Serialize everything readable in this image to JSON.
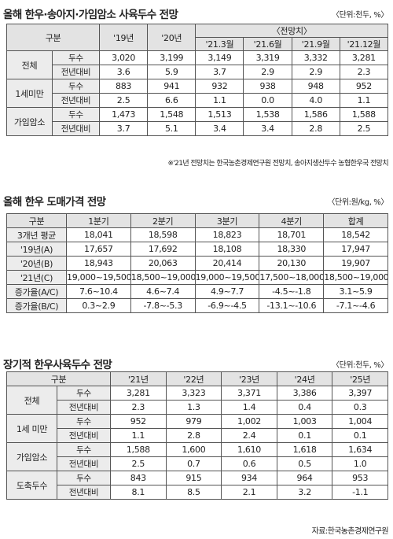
{
  "t1": {
    "title": "올해 한우·송아지·가임암소 사육두수 전망",
    "unit": "〈단위:천두, %〉",
    "head": {
      "group": "구분",
      "y19": "'19년",
      "y20": "'20년",
      "forecast": "〈전망치〉",
      "q": [
        "'21.3월",
        "'21.6월",
        "'21.9월",
        "'21.12월"
      ]
    },
    "rows": [
      {
        "cat": "전체",
        "sub": [
          {
            "label": "두수",
            "values": [
              "3,020",
              "3,199",
              "3,149",
              "3,319",
              "3,332",
              "3,281"
            ]
          },
          {
            "label": "전년대비",
            "values": [
              "3.6",
              "5.9",
              "3.7",
              "2.9",
              "2.9",
              "2.3"
            ]
          }
        ]
      },
      {
        "cat": "1세미만",
        "sub": [
          {
            "label": "두수",
            "values": [
              "883",
              "941",
              "932",
              "938",
              "948",
              "952"
            ]
          },
          {
            "label": "전년대비",
            "values": [
              "2.5",
              "6.6",
              "1.1",
              "0.0",
              "4.0",
              "1.1"
            ]
          }
        ]
      },
      {
        "cat": "가임암소",
        "sub": [
          {
            "label": "두수",
            "values": [
              "1,473",
              "1,548",
              "1,513",
              "1,538",
              "1,586",
              "1,588"
            ]
          },
          {
            "label": "전년대비",
            "values": [
              "3.7",
              "5.1",
              "3.4",
              "3.4",
              "2.8",
              "2.5"
            ]
          }
        ]
      }
    ],
    "note": "※'21년 전망치는 한국농촌경제연구원 전망치, 송아지생산두수 농협한우국 전망치"
  },
  "t2": {
    "title": "올해 한우 도매가격 전망",
    "unit": "〈단위:원/kg, %〉",
    "head": [
      "구분",
      "1분기",
      "2분기",
      "3분기",
      "4분기",
      "합계"
    ],
    "rows": [
      {
        "label": "3개년 평균",
        "values": [
          "18,041",
          "18,598",
          "18,823",
          "18,701",
          "18,542"
        ]
      },
      {
        "label": "'19년(A)",
        "values": [
          "17,657",
          "17,692",
          "18,108",
          "18,330",
          "17,947"
        ]
      },
      {
        "label": "'20년(B)",
        "values": [
          "18,943",
          "20,063",
          "20,414",
          "20,130",
          "19,907"
        ]
      },
      {
        "label": "'21년(C)",
        "values": [
          "19,000~19,500",
          "18,500~19,000",
          "19,000~19,500",
          "17,500~18,000",
          "18,500~19,000"
        ]
      },
      {
        "label": "증가율(A/C)",
        "values": [
          "7.6~10.4",
          "4.6~7.4",
          "4.9~7.7",
          "-4.5~-1.8",
          "3.1~5.9"
        ]
      },
      {
        "label": "증가율(B/C)",
        "values": [
          "0.3~2.9",
          "-7.8~-5.3",
          "-6.9~-4.5",
          "-13.1~-10.6",
          "-7.1~-4.6"
        ]
      }
    ]
  },
  "t3": {
    "title": "장기적 한우사육두수 전망",
    "unit": "〈단위:천두, %〉",
    "head": [
      "구분",
      "'21년",
      "'22년",
      "'23년",
      "'24년",
      "'25년"
    ],
    "rows": [
      {
        "cat": "전체",
        "sub": [
          {
            "label": "두수",
            "values": [
              "3,281",
              "3,323",
              "3,371",
              "3,386",
              "3,397"
            ]
          },
          {
            "label": "전년대비",
            "values": [
              "2.3",
              "1.3",
              "1.4",
              "0.4",
              "0.3"
            ]
          }
        ]
      },
      {
        "cat": "1세 미만",
        "sub": [
          {
            "label": "두수",
            "values": [
              "952",
              "979",
              "1,002",
              "1,003",
              "1,004"
            ]
          },
          {
            "label": "전년대비",
            "values": [
              "1.1",
              "2.8",
              "2.4",
              "0.1",
              "0.1"
            ]
          }
        ]
      },
      {
        "cat": "가임암소",
        "sub": [
          {
            "label": "두수",
            "values": [
              "1,588",
              "1,600",
              "1,610",
              "1,618",
              "1,634"
            ]
          },
          {
            "label": "전년대비",
            "values": [
              "2.5",
              "0.7",
              "0.6",
              "0.5",
              "1.0"
            ]
          }
        ]
      },
      {
        "cat": "도축두수",
        "sub": [
          {
            "label": "두수",
            "values": [
              "843",
              "915",
              "934",
              "964",
              "953"
            ]
          },
          {
            "label": "전년대비",
            "values": [
              "8.1",
              "8.5",
              "2.1",
              "3.2",
              "-1.1"
            ]
          }
        ]
      }
    ],
    "source": "자료:한국농촌경제연구원"
  }
}
